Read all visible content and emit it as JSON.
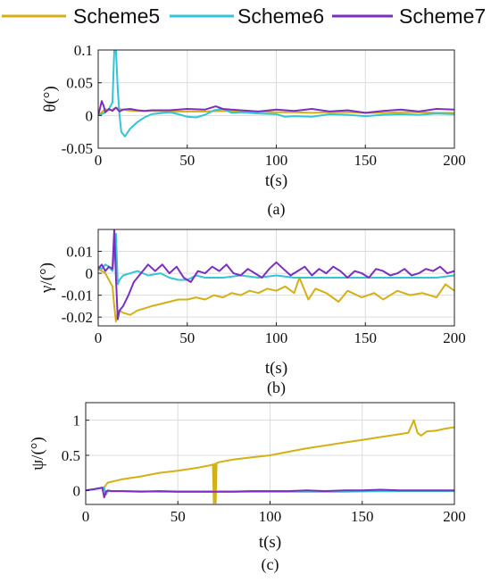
{
  "legend": [
    {
      "name": "Scheme5",
      "color": "#D4B017"
    },
    {
      "name": "Scheme6",
      "color": "#33C4D6"
    },
    {
      "name": "Scheme7",
      "color": "#7B2FBE"
    }
  ],
  "chart_data": [
    {
      "type": "line",
      "panel_label": "(a)",
      "xlabel": "t(s)",
      "ylabel": "θ(°)",
      "xlim": [
        0,
        200
      ],
      "ylim": [
        -0.05,
        0.1
      ],
      "xticks": [
        0,
        50,
        100,
        150,
        200
      ],
      "yticks": [
        -0.05,
        0,
        0.05,
        0.1
      ],
      "ytick_labels": [
        "-0.05",
        "0",
        "0.05",
        "0.1"
      ],
      "grid": true,
      "series": [
        {
          "name": "Scheme5",
          "color": "#D4B017",
          "x": [
            0,
            2,
            4,
            6,
            8,
            10,
            12,
            14,
            16,
            20,
            30,
            40,
            50,
            60,
            70,
            80,
            90,
            100,
            110,
            120,
            130,
            140,
            150,
            160,
            170,
            180,
            190,
            200
          ],
          "y": [
            0,
            0.005,
            0.01,
            0.008,
            0.009,
            0.012,
            0.01,
            0.009,
            0.008,
            0.007,
            0.007,
            0.006,
            0.006,
            0.006,
            0.007,
            0.006,
            0.006,
            0.005,
            0.005,
            0.004,
            0.005,
            0.005,
            0.004,
            0.004,
            0.005,
            0.005,
            0.004,
            0.004
          ]
        },
        {
          "name": "Scheme6",
          "color": "#33C4D6",
          "x": [
            0,
            2,
            4,
            6,
            8,
            9,
            10,
            11,
            12,
            13,
            15,
            18,
            22,
            26,
            30,
            40,
            45,
            50,
            55,
            60,
            65,
            70,
            75,
            80,
            90,
            100,
            105,
            110,
            120,
            130,
            140,
            150,
            160,
            170,
            180,
            190,
            200
          ],
          "y": [
            0,
            0.002,
            0.005,
            0.01,
            0.02,
            0.1,
            0.1,
            0.04,
            0.0,
            -0.025,
            -0.032,
            -0.02,
            -0.01,
            -0.003,
            0.002,
            0.005,
            0.002,
            -0.002,
            -0.003,
            0.001,
            0.008,
            0.01,
            0.004,
            0.005,
            0.003,
            0.002,
            -0.002,
            -0.001,
            -0.002,
            0.002,
            0.001,
            -0.001,
            0.001,
            0.002,
            0.001,
            0.003,
            0.002
          ]
        },
        {
          "name": "Scheme7",
          "color": "#7B2FBE",
          "x": [
            0,
            2,
            3,
            4,
            6,
            8,
            10,
            12,
            14,
            18,
            22,
            26,
            30,
            40,
            50,
            60,
            66,
            70,
            80,
            90,
            100,
            110,
            120,
            130,
            140,
            150,
            160,
            170,
            180,
            190,
            200
          ],
          "y": [
            0,
            0.022,
            0.015,
            0.005,
            0.01,
            0.007,
            0.012,
            0.006,
            0.009,
            0.01,
            0.008,
            0.007,
            0.008,
            0.008,
            0.01,
            0.009,
            0.014,
            0.01,
            0.008,
            0.006,
            0.009,
            0.007,
            0.01,
            0.006,
            0.008,
            0.004,
            0.007,
            0.009,
            0.006,
            0.01,
            0.009
          ]
        }
      ]
    },
    {
      "type": "line",
      "panel_label": "(b)",
      "xlabel": "t(s)",
      "ylabel": "γ/(°)",
      "xlim": [
        0,
        200
      ],
      "ylim": [
        -0.024,
        0.02
      ],
      "xticks": [
        0,
        50,
        100,
        150,
        200
      ],
      "yticks": [
        -0.02,
        -0.01,
        0,
        0.01
      ],
      "ytick_labels": [
        "-0.02",
        "-0.01",
        "0",
        "0.01"
      ],
      "grid": true,
      "series": [
        {
          "name": "Scheme5",
          "color": "#D4B017",
          "x": [
            0,
            2,
            4,
            6,
            8,
            9,
            10,
            11,
            12,
            14,
            18,
            22,
            26,
            30,
            35,
            40,
            45,
            50,
            55,
            60,
            65,
            70,
            75,
            80,
            85,
            90,
            95,
            100,
            105,
            110,
            113,
            118,
            122,
            128,
            135,
            140,
            148,
            155,
            160,
            168,
            175,
            182,
            190,
            195,
            200
          ],
          "y": [
            0.002,
            0.001,
            0.0,
            -0.003,
            -0.006,
            -0.015,
            -0.022,
            -0.018,
            -0.017,
            -0.018,
            -0.019,
            -0.017,
            -0.016,
            -0.015,
            -0.014,
            -0.013,
            -0.012,
            -0.012,
            -0.011,
            -0.012,
            -0.01,
            -0.011,
            -0.009,
            -0.01,
            -0.008,
            -0.009,
            -0.007,
            -0.008,
            -0.006,
            -0.009,
            -0.002,
            -0.012,
            -0.007,
            -0.009,
            -0.013,
            -0.008,
            -0.011,
            -0.009,
            -0.012,
            -0.008,
            -0.01,
            -0.009,
            -0.011,
            -0.005,
            -0.008
          ]
        },
        {
          "name": "Scheme6",
          "color": "#33C4D6",
          "x": [
            0,
            2,
            4,
            6,
            8,
            10,
            11,
            12,
            14,
            18,
            22,
            28,
            35,
            40,
            45,
            50,
            55,
            60,
            70,
            80,
            90,
            100,
            110,
            120,
            130,
            140,
            150,
            160,
            170,
            180,
            190,
            200
          ],
          "y": [
            0.003,
            0.002,
            0.004,
            0.003,
            0.001,
            0.018,
            -0.005,
            -0.003,
            -0.001,
            0.0,
            0.001,
            -0.001,
            0.0,
            -0.002,
            -0.003,
            -0.003,
            -0.001,
            -0.002,
            -0.002,
            -0.001,
            -0.002,
            -0.001,
            -0.002,
            -0.002,
            -0.002,
            -0.002,
            -0.002,
            -0.002,
            -0.002,
            -0.002,
            -0.002,
            -0.001
          ]
        },
        {
          "name": "Scheme7",
          "color": "#7B2FBE",
          "x": [
            0,
            2,
            4,
            6,
            8,
            9,
            10,
            11,
            12,
            14,
            17,
            20,
            24,
            28,
            32,
            36,
            40,
            44,
            48,
            52,
            56,
            60,
            64,
            68,
            72,
            76,
            80,
            84,
            88,
            92,
            96,
            100,
            104,
            108,
            112,
            116,
            120,
            124,
            128,
            132,
            136,
            140,
            144,
            148,
            152,
            156,
            160,
            164,
            168,
            172,
            176,
            180,
            184,
            188,
            192,
            196,
            200
          ],
          "y": [
            0.002,
            0.004,
            0.001,
            0.003,
            0.002,
            0.02,
            -0.002,
            -0.021,
            -0.017,
            -0.015,
            -0.01,
            -0.004,
            0.0,
            0.004,
            0.001,
            0.004,
            0.0,
            0.003,
            -0.002,
            -0.004,
            0.001,
            0.0,
            0.003,
            0.001,
            0.004,
            0.0,
            -0.001,
            0.002,
            0.0,
            -0.002,
            0.002,
            0.005,
            0.002,
            -0.001,
            0.001,
            0.003,
            -0.001,
            0.002,
            0.0,
            0.003,
            0.001,
            -0.002,
            0.001,
            0.0,
            -0.002,
            0.002,
            0.001,
            -0.001,
            0.0,
            0.002,
            -0.001,
            0.0,
            0.002,
            0.001,
            0.003,
            0.0,
            0.001
          ]
        }
      ]
    },
    {
      "type": "line",
      "panel_label": "(c)",
      "xlabel": "t(s)",
      "ylabel": "ψ/(°)",
      "xlim": [
        0,
        200
      ],
      "ylim": [
        -0.2,
        1.25
      ],
      "xticks": [
        0,
        50,
        100,
        150,
        200
      ],
      "yticks": [
        0,
        0.5,
        1
      ],
      "ytick_labels": [
        "0",
        "0.5",
        "1"
      ],
      "grid": true,
      "series": [
        {
          "name": "Scheme5",
          "color": "#D4B017",
          "x": [
            0,
            5,
            10,
            11,
            12,
            20,
            30,
            40,
            50,
            60,
            68,
            69,
            69.5,
            70,
            70.5,
            71,
            71.5,
            72,
            80,
            90,
            100,
            110,
            120,
            130,
            140,
            150,
            160,
            170,
            175,
            178,
            180,
            182,
            185,
            190,
            195,
            200
          ],
          "y": [
            0,
            0.02,
            0.04,
            0.08,
            0.11,
            0.16,
            0.2,
            0.25,
            0.28,
            0.32,
            0.36,
            0.37,
            -0.18,
            0.38,
            -0.18,
            0.39,
            0.39,
            0.4,
            0.44,
            0.47,
            0.5,
            0.55,
            0.6,
            0.64,
            0.68,
            0.72,
            0.76,
            0.8,
            0.82,
            1.0,
            0.82,
            0.78,
            0.84,
            0.85,
            0.88,
            0.9
          ]
        },
        {
          "name": "Scheme6",
          "color": "#33C4D6",
          "x": [
            0,
            5,
            10,
            11,
            12,
            20,
            40,
            60,
            80,
            100,
            120,
            140,
            160,
            180,
            200
          ],
          "y": [
            0,
            0.02,
            0.04,
            -0.06,
            -0.01,
            -0.01,
            -0.02,
            -0.02,
            -0.02,
            -0.02,
            -0.02,
            -0.02,
            -0.01,
            -0.01,
            -0.01
          ]
        },
        {
          "name": "Scheme7",
          "color": "#7B2FBE",
          "x": [
            0,
            5,
            9,
            10,
            11,
            12,
            14,
            20,
            30,
            40,
            50,
            60,
            70,
            80,
            90,
            100,
            110,
            120,
            130,
            140,
            150,
            160,
            170,
            180,
            190,
            200
          ],
          "y": [
            0,
            0.02,
            0.04,
            -0.1,
            -0.02,
            0.0,
            -0.01,
            -0.01,
            -0.02,
            -0.01,
            -0.02,
            -0.02,
            -0.02,
            -0.02,
            -0.01,
            -0.01,
            -0.01,
            0.0,
            -0.01,
            0.0,
            0.0,
            0.01,
            0.0,
            0.0,
            0.0,
            0.0
          ]
        }
      ]
    }
  ]
}
